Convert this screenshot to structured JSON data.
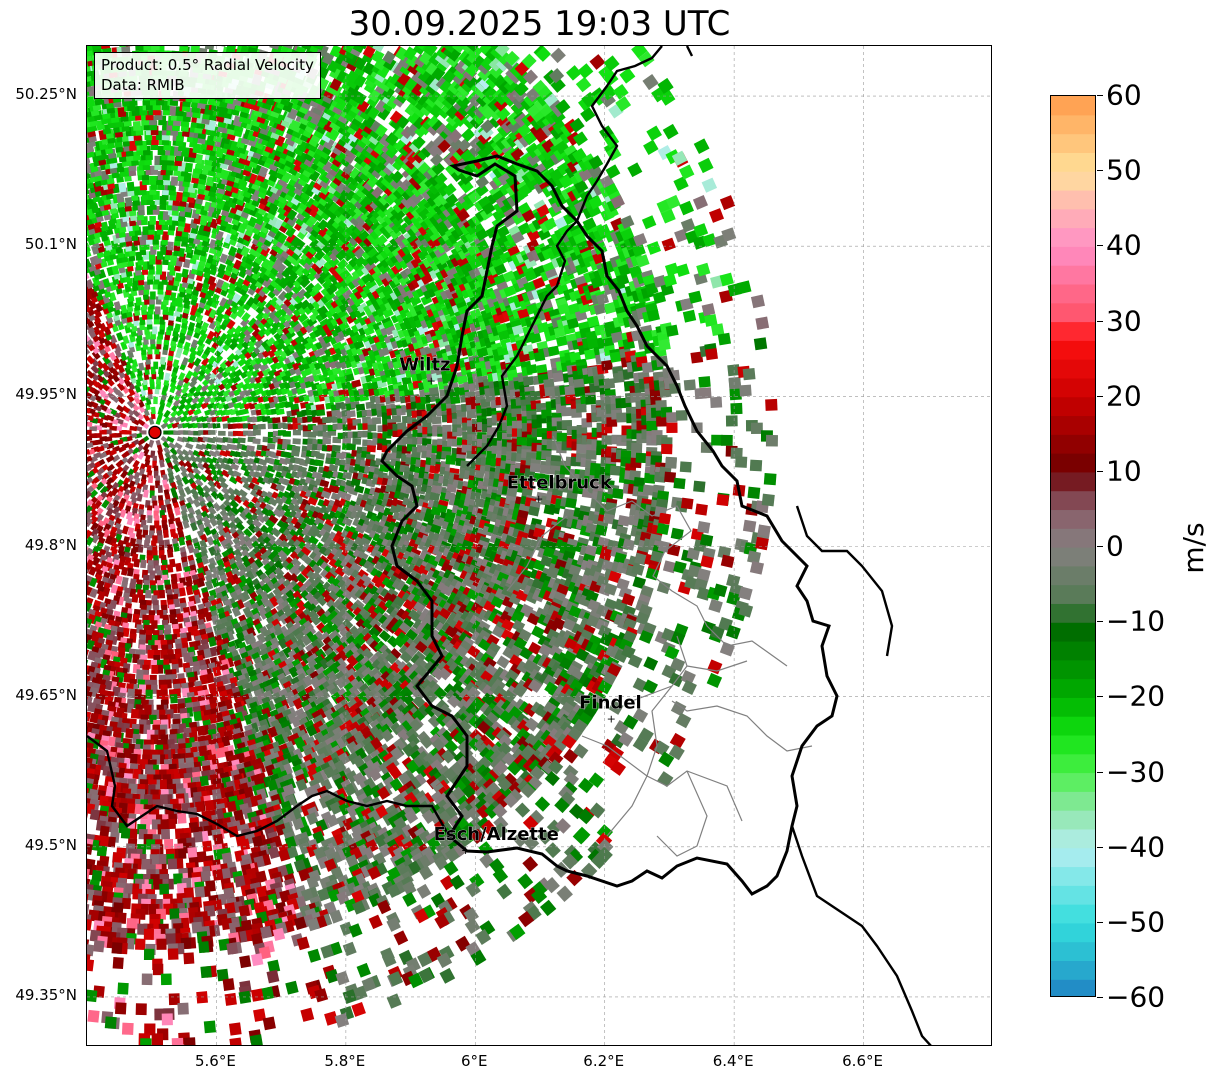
{
  "title": "30.09.2025 19:03 UTC",
  "info_box": {
    "product": "Product: 0.5° Radial Velocity",
    "source": "Data: RMIB"
  },
  "map": {
    "extent_lon": [
      5.4,
      6.8
    ],
    "extent_lat": [
      49.3,
      50.3
    ],
    "lat_ticks": [
      {
        "value": 50.25,
        "label": "50.25°N"
      },
      {
        "value": 50.1,
        "label": "50.1°N"
      },
      {
        "value": 49.95,
        "label": "49.95°N"
      },
      {
        "value": 49.8,
        "label": "49.8°N"
      },
      {
        "value": 49.65,
        "label": "49.65°N"
      },
      {
        "value": 49.5,
        "label": "49.5°N"
      },
      {
        "value": 49.35,
        "label": "49.35°N"
      }
    ],
    "lon_ticks": [
      {
        "value": 5.6,
        "label": "5.6°E"
      },
      {
        "value": 5.8,
        "label": "5.8°E"
      },
      {
        "value": 6.0,
        "label": "6°E"
      },
      {
        "value": 6.2,
        "label": "6.2°E"
      },
      {
        "value": 6.4,
        "label": "6.4°E"
      },
      {
        "value": 6.6,
        "label": "6.6°E"
      }
    ],
    "grid": true,
    "radar_site": {
      "lon": 5.505,
      "lat": 49.914
    },
    "cities": [
      {
        "name": "Wiltz",
        "lon": 5.932,
        "lat": 49.966
      },
      {
        "name": "Ettelbruck",
        "lon": 6.098,
        "lat": 49.848
      },
      {
        "name": "Findel",
        "lon": 6.21,
        "lat": 49.628
      },
      {
        "name": "Esch/Alzette",
        "lon": 5.985,
        "lat": 49.497
      }
    ]
  },
  "colorbar": {
    "label": "m/s",
    "min": -60,
    "max": 60,
    "ticks": [
      {
        "value": 60,
        "label": "60"
      },
      {
        "value": 50,
        "label": "50"
      },
      {
        "value": 40,
        "label": "40"
      },
      {
        "value": 30,
        "label": "30"
      },
      {
        "value": 20,
        "label": "20"
      },
      {
        "value": 10,
        "label": "10"
      },
      {
        "value": 0,
        "label": "0"
      },
      {
        "value": -10,
        "label": "−10"
      },
      {
        "value": -20,
        "label": "−20"
      },
      {
        "value": -30,
        "label": "−30"
      },
      {
        "value": -40,
        "label": "−40"
      },
      {
        "value": -50,
        "label": "−50"
      },
      {
        "value": -60,
        "label": "−60"
      }
    ],
    "stops": [
      {
        "v": -60,
        "color": "#1f7fc2"
      },
      {
        "v": -55,
        "color": "#29b6d0"
      },
      {
        "v": -50,
        "color": "#33dddd"
      },
      {
        "v": -40,
        "color": "#b5eef0"
      },
      {
        "v": -35,
        "color": "#8ee6a8"
      },
      {
        "v": -30,
        "color": "#4cf04c"
      },
      {
        "v": -25,
        "color": "#11e311"
      },
      {
        "v": -20,
        "color": "#00b000"
      },
      {
        "v": -10,
        "color": "#006400"
      },
      {
        "v": -8,
        "color": "#4e7a4e"
      },
      {
        "v": 0,
        "color": "#858080"
      },
      {
        "v": 5,
        "color": "#8a5c68"
      },
      {
        "v": 8,
        "color": "#7a2b36"
      },
      {
        "v": 10,
        "color": "#6e0000"
      },
      {
        "v": 20,
        "color": "#cc0000"
      },
      {
        "v": 28,
        "color": "#ff1010"
      },
      {
        "v": 30,
        "color": "#ff4f64"
      },
      {
        "v": 40,
        "color": "#ff8fc5"
      },
      {
        "v": 45,
        "color": "#ffb4b4"
      },
      {
        "v": 50,
        "color": "#ffe19a"
      },
      {
        "v": 60,
        "color": "#ff9a4a"
      }
    ]
  }
}
